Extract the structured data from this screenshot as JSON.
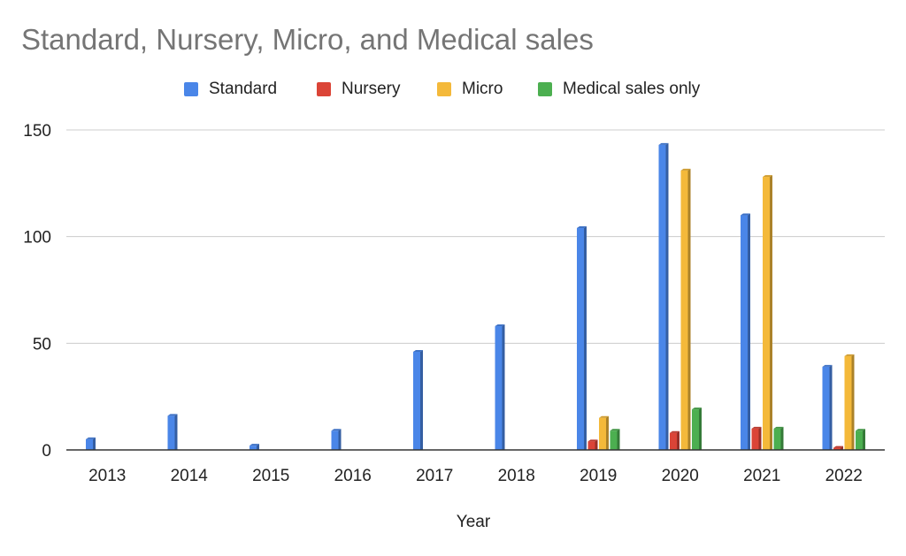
{
  "chart_data": {
    "type": "bar",
    "title": "Standard, Nursery, Micro, and Medical sales",
    "xlabel": "Year",
    "ylabel": "",
    "ylim": [
      0,
      150
    ],
    "yticks": [
      "0",
      "50",
      "100",
      "150"
    ],
    "grid": true,
    "legend_position": "top",
    "categories": [
      "2013",
      "2014",
      "2015",
      "2016",
      "2017",
      "2018",
      "2019",
      "2020",
      "2021",
      "2022"
    ],
    "series": [
      {
        "name": "Standard",
        "color": "#4a86e8",
        "values": [
          5,
          16,
          2,
          9,
          46,
          58,
          104,
          143,
          110,
          39
        ]
      },
      {
        "name": "Nursery",
        "color": "#db4437",
        "values": [
          0,
          0,
          0,
          0,
          0,
          0,
          4,
          8,
          10,
          1
        ]
      },
      {
        "name": "Micro",
        "color": "#f4b93a",
        "values": [
          0,
          0,
          0,
          0,
          0,
          0,
          15,
          131,
          128,
          44
        ]
      },
      {
        "name": "Medical sales only",
        "color": "#4caf50",
        "values": [
          0,
          0,
          0,
          0,
          0,
          0,
          9,
          19,
          10,
          9
        ]
      }
    ]
  }
}
